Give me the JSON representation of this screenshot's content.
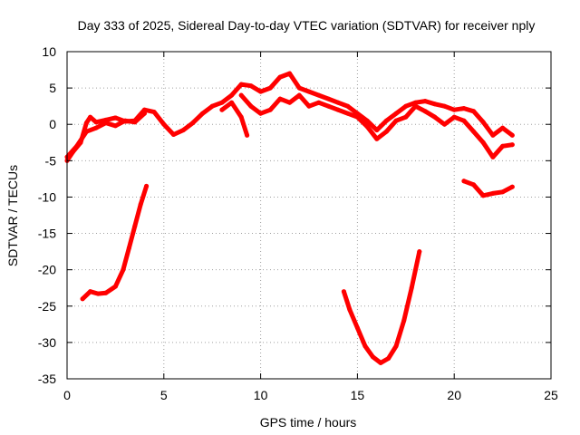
{
  "chart_data": {
    "type": "scatter",
    "title": "Day 333 of 2025, Sidereal Day-to-day VTEC variation (SDTVAR) for receiver nply",
    "xlabel": "GPS time / hours",
    "ylabel": "SDTVAR / TECUs",
    "xlim": [
      0,
      25
    ],
    "ylim": [
      -35,
      10
    ],
    "xticks": [
      0,
      5,
      10,
      15,
      20,
      25
    ],
    "yticks": [
      10,
      5,
      0,
      -5,
      -10,
      -15,
      -20,
      -25,
      -30,
      -35
    ],
    "grid": true,
    "series_color": "#ff0000",
    "series": [
      {
        "name": "track-1",
        "points": [
          [
            0,
            -5
          ],
          [
            0.3,
            -3.8
          ],
          [
            0.7,
            -2.5
          ],
          [
            1.0,
            0.2
          ],
          [
            1.2,
            1.0
          ],
          [
            1.5,
            0.3
          ],
          [
            2.0,
            0.6
          ],
          [
            2.5,
            0.9
          ],
          [
            3.0,
            0.4
          ],
          [
            3.5,
            0.5
          ],
          [
            4.0,
            2.0
          ],
          [
            4.5,
            1.7
          ],
          [
            5.0,
            0
          ],
          [
            5.5,
            -1.4
          ],
          [
            6.0,
            -0.8
          ],
          [
            6.5,
            0.2
          ],
          [
            7.0,
            1.5
          ],
          [
            7.5,
            2.5
          ],
          [
            8.0,
            3.0
          ],
          [
            8.5,
            4.0
          ],
          [
            9.0,
            5.5
          ],
          [
            9.5,
            5.3
          ],
          [
            10.0,
            4.5
          ],
          [
            10.5,
            5.0
          ],
          [
            11.0,
            6.5
          ],
          [
            11.5,
            7.0
          ],
          [
            12.0,
            5.0
          ],
          [
            12.5,
            4.5
          ],
          [
            13.0,
            4.0
          ],
          [
            13.5,
            3.5
          ],
          [
            14.0,
            3.0
          ],
          [
            14.5,
            2.5
          ],
          [
            15.0,
            1.5
          ],
          [
            15.5,
            0.5
          ],
          [
            16.0,
            -0.8
          ],
          [
            16.5,
            0.5
          ],
          [
            17.0,
            1.5
          ],
          [
            17.5,
            2.5
          ],
          [
            18.0,
            3.0
          ],
          [
            18.5,
            3.2
          ],
          [
            19.0,
            2.8
          ],
          [
            19.5,
            2.5
          ],
          [
            20.0,
            2.0
          ],
          [
            20.5,
            2.2
          ],
          [
            21.0,
            1.8
          ],
          [
            21.5,
            0.3
          ],
          [
            22.0,
            -1.5
          ],
          [
            22.5,
            -0.5
          ],
          [
            23.0,
            -1.5
          ]
        ]
      },
      {
        "name": "track-2",
        "points": [
          [
            0,
            -4.5
          ],
          [
            0.5,
            -3.0
          ],
          [
            1.0,
            -1.0
          ],
          [
            1.5,
            -0.5
          ],
          [
            2.0,
            0.2
          ],
          [
            2.5,
            -0.2
          ],
          [
            3.0,
            0.5
          ],
          [
            3.5,
            0.3
          ],
          [
            4.0,
            1.5
          ]
        ]
      },
      {
        "name": "track-3",
        "points": [
          [
            8.0,
            2.0
          ],
          [
            8.5,
            3.0
          ],
          [
            9.0,
            1.0
          ],
          [
            9.3,
            -1.5
          ]
        ]
      },
      {
        "name": "track-4",
        "points": [
          [
            9.0,
            4.0
          ],
          [
            9.5,
            2.5
          ],
          [
            10.0,
            1.5
          ],
          [
            10.5,
            2.0
          ],
          [
            11.0,
            3.5
          ],
          [
            11.5,
            3.0
          ],
          [
            12.0,
            4.0
          ],
          [
            12.5,
            2.5
          ],
          [
            13.0,
            3.0
          ],
          [
            13.5,
            2.5
          ],
          [
            14.0,
            2.0
          ],
          [
            14.5,
            1.5
          ],
          [
            15.0,
            1.0
          ],
          [
            15.5,
            -0.3
          ],
          [
            16.0,
            -2.0
          ],
          [
            16.5,
            -1.0
          ],
          [
            17.0,
            0.5
          ],
          [
            17.5,
            1.0
          ],
          [
            18.0,
            2.5
          ],
          [
            18.5,
            1.8
          ],
          [
            19.0,
            1.0
          ],
          [
            19.5,
            0
          ],
          [
            20.0,
            1.0
          ],
          [
            20.5,
            0.5
          ],
          [
            21.0,
            -1.0
          ],
          [
            21.5,
            -2.5
          ],
          [
            22.0,
            -4.5
          ],
          [
            22.5,
            -3.0
          ],
          [
            23.0,
            -2.8
          ]
        ]
      },
      {
        "name": "track-5",
        "points": [
          [
            0.8,
            -24
          ],
          [
            1.2,
            -23
          ],
          [
            1.6,
            -23.3
          ],
          [
            2.0,
            -23.2
          ],
          [
            2.5,
            -22.3
          ],
          [
            2.9,
            -20
          ],
          [
            3.2,
            -17
          ],
          [
            3.5,
            -14
          ],
          [
            3.8,
            -11
          ],
          [
            4.1,
            -8.5
          ]
        ]
      },
      {
        "name": "track-6",
        "points": [
          [
            14.3,
            -23
          ],
          [
            14.6,
            -25.5
          ],
          [
            15.0,
            -28
          ],
          [
            15.4,
            -30.5
          ],
          [
            15.8,
            -32
          ],
          [
            16.2,
            -32.8
          ],
          [
            16.6,
            -32.2
          ],
          [
            17.0,
            -30.5
          ],
          [
            17.4,
            -27
          ],
          [
            17.8,
            -22.5
          ],
          [
            18.2,
            -17.5
          ]
        ]
      },
      {
        "name": "track-7",
        "points": [
          [
            20.5,
            -7.8
          ],
          [
            21.0,
            -8.3
          ],
          [
            21.5,
            -9.8
          ],
          [
            22.0,
            -9.5
          ],
          [
            22.5,
            -9.3
          ],
          [
            23.0,
            -8.6
          ]
        ]
      }
    ]
  }
}
